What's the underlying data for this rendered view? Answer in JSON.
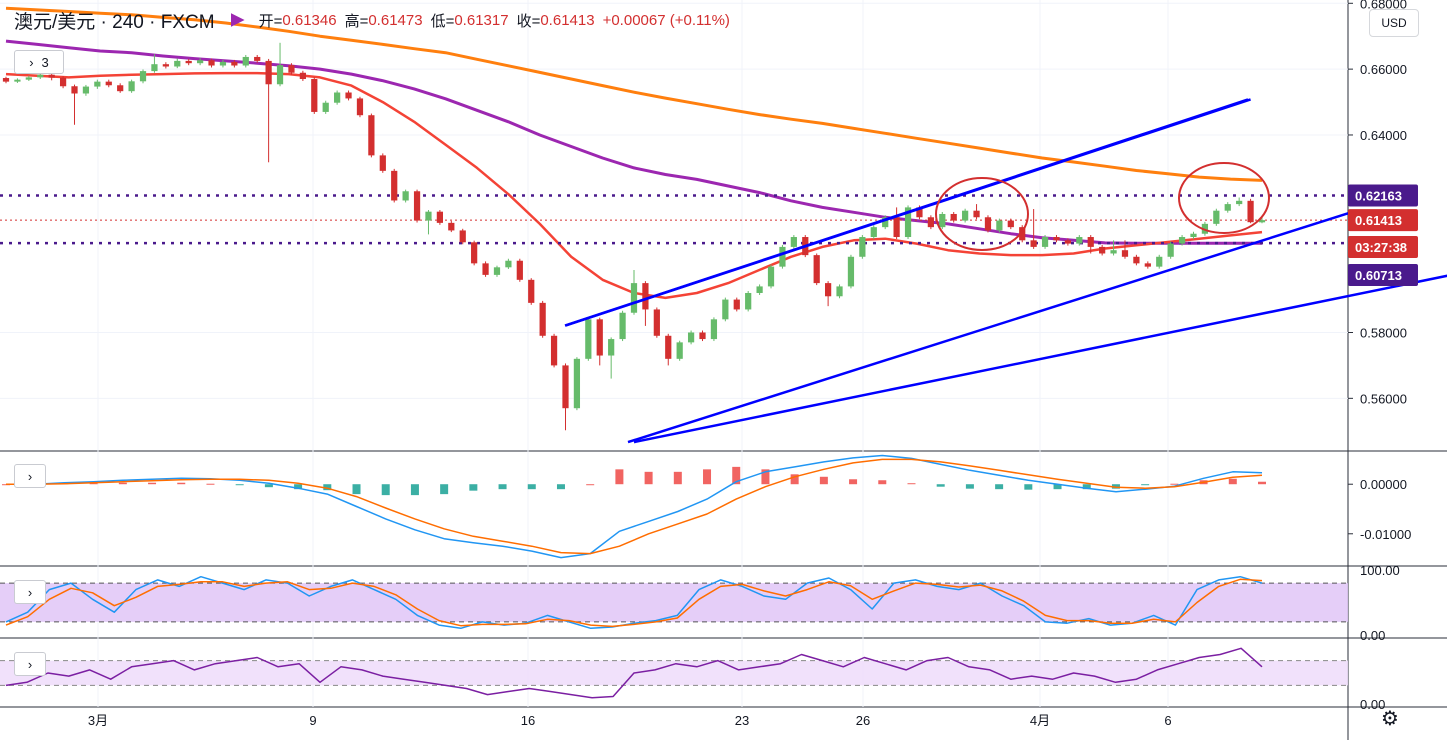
{
  "header": {
    "symbol": "澳元/美元 · 240 · FXCM",
    "open_label": "开=",
    "open": "0.61346",
    "high_label": "高=",
    "high": "0.61473",
    "low_label": "低=",
    "low": "0.61317",
    "close_label": "收=",
    "close": "0.61413",
    "change": "+0.00067 (+0.11%)",
    "indicators_count": "3"
  },
  "currency": "USD",
  "colors": {
    "up": "#26a69a",
    "down": "#d32f2f",
    "ma_fast": "#f44336",
    "ma_mid": "#9c27b0",
    "ma_slow": "#ff7f0e",
    "channel": "#0000ff",
    "level": "#4a1a8c",
    "accent": "#d32f2f"
  },
  "chart_data": [
    {
      "type": "candlestick",
      "title": "澳元/美元 · 240 · FXCM",
      "x_ticks": [
        "3月",
        "9",
        "16",
        "23",
        "26",
        "4月",
        "6"
      ],
      "y_ticks": [
        "0.68000",
        "0.66000",
        "0.64000",
        "0.58000",
        "0.56000"
      ],
      "ylim": [
        0.544,
        0.681
      ],
      "price_labels": [
        {
          "text": "0.62163",
          "value": 0.62163
        },
        {
          "text": "0.61413",
          "value": 0.61413
        },
        {
          "text": "03:27:38",
          "value": 0.6066
        },
        {
          "text": "0.60713",
          "value": 0.60713
        }
      ],
      "horizontal_levels": [
        0.62163,
        0.60713
      ],
      "current_price": 0.61413,
      "channel_lines": [
        {
          "from": [
            0.08,
            0.5821
          ],
          "to": [
            0.31,
            0.6508
          ]
        },
        {
          "from": [
            0.09,
            0.5467
          ],
          "to": [
            0.43,
            0.6148
          ]
        }
      ],
      "candles": [
        [
          0.6573,
          0.6562,
          0.6577,
          0.6557
        ],
        [
          0.6562,
          0.6568,
          0.6572,
          0.6558
        ],
        [
          0.6568,
          0.6575,
          0.658,
          0.6564
        ],
        [
          0.6575,
          0.6583,
          0.6588,
          0.657
        ],
        [
          0.6583,
          0.6574,
          0.659,
          0.6566
        ],
        [
          0.6574,
          0.6548,
          0.6579,
          0.6542
        ],
        [
          0.6548,
          0.6526,
          0.6553,
          0.6431
        ],
        [
          0.6526,
          0.6547,
          0.6552,
          0.6519
        ],
        [
          0.6547,
          0.6562,
          0.6568,
          0.654
        ],
        [
          0.6562,
          0.6551,
          0.6568,
          0.6545
        ],
        [
          0.6551,
          0.6533,
          0.6557,
          0.6528
        ],
        [
          0.6533,
          0.6563,
          0.6568,
          0.6528
        ],
        [
          0.6563,
          0.6594,
          0.6599,
          0.6557
        ],
        [
          0.6594,
          0.6615,
          0.6645,
          0.6589
        ],
        [
          0.6615,
          0.6608,
          0.6621,
          0.6602
        ],
        [
          0.6608,
          0.6625,
          0.6632,
          0.6603
        ],
        [
          0.6625,
          0.6618,
          0.6631,
          0.6612
        ],
        [
          0.6618,
          0.6627,
          0.6633,
          0.6612
        ],
        [
          0.6627,
          0.6611,
          0.6632,
          0.6605
        ],
        [
          0.6611,
          0.6622,
          0.6628,
          0.6605
        ],
        [
          0.6622,
          0.6611,
          0.6628,
          0.6605
        ],
        [
          0.6611,
          0.6637,
          0.6643,
          0.6605
        ],
        [
          0.6637,
          0.6625,
          0.6643,
          0.6619
        ],
        [
          0.6625,
          0.6554,
          0.6631,
          0.6317
        ],
        [
          0.6554,
          0.6612,
          0.668,
          0.6548
        ],
        [
          0.6612,
          0.6589,
          0.6618,
          0.6583
        ],
        [
          0.6589,
          0.657,
          0.6595,
          0.6564
        ],
        [
          0.657,
          0.647,
          0.6575,
          0.6464
        ],
        [
          0.647,
          0.6498,
          0.6504,
          0.6464
        ],
        [
          0.6498,
          0.6529,
          0.6535,
          0.6492
        ],
        [
          0.6529,
          0.6511,
          0.6535,
          0.6505
        ],
        [
          0.6511,
          0.646,
          0.6516,
          0.6454
        ],
        [
          0.646,
          0.6338,
          0.6465,
          0.6332
        ],
        [
          0.6338,
          0.6291,
          0.6344,
          0.6285
        ],
        [
          0.6291,
          0.6201,
          0.6297,
          0.6195
        ],
        [
          0.6201,
          0.6229,
          0.6234,
          0.6195
        ],
        [
          0.6229,
          0.614,
          0.6234,
          0.6134
        ],
        [
          0.614,
          0.6167,
          0.6172,
          0.6098
        ],
        [
          0.6167,
          0.6133,
          0.6172,
          0.6127
        ],
        [
          0.6133,
          0.611,
          0.6139,
          0.6105
        ],
        [
          0.611,
          0.6074,
          0.6115,
          0.6068
        ],
        [
          0.6074,
          0.601,
          0.6079,
          0.6004
        ],
        [
          0.601,
          0.5975,
          0.6016,
          0.5969
        ],
        [
          0.5975,
          0.5998,
          0.6003,
          0.5969
        ],
        [
          0.5998,
          0.6018,
          0.6024,
          0.5993
        ],
        [
          0.6018,
          0.596,
          0.6024,
          0.5954
        ],
        [
          0.596,
          0.589,
          0.5965,
          0.5884
        ],
        [
          0.589,
          0.579,
          0.5896,
          0.5784
        ],
        [
          0.579,
          0.57,
          0.5796,
          0.5694
        ],
        [
          0.57,
          0.557,
          0.5706,
          0.5503
        ],
        [
          0.557,
          0.572,
          0.5725,
          0.5564
        ],
        [
          0.572,
          0.584,
          0.5845,
          0.5714
        ],
        [
          0.584,
          0.573,
          0.5845,
          0.57
        ],
        [
          0.573,
          0.578,
          0.5785,
          0.566
        ],
        [
          0.578,
          0.586,
          0.5866,
          0.5774
        ],
        [
          0.586,
          0.595,
          0.599,
          0.5854
        ],
        [
          0.595,
          0.587,
          0.5956,
          0.582
        ],
        [
          0.587,
          0.579,
          0.5876,
          0.5784
        ],
        [
          0.579,
          0.572,
          0.5796,
          0.57
        ],
        [
          0.572,
          0.577,
          0.5775,
          0.5714
        ],
        [
          0.577,
          0.58,
          0.5806,
          0.5764
        ],
        [
          0.58,
          0.578,
          0.5806,
          0.5774
        ],
        [
          0.578,
          0.584,
          0.5846,
          0.5774
        ],
        [
          0.584,
          0.59,
          0.5906,
          0.5834
        ],
        [
          0.59,
          0.587,
          0.5906,
          0.5864
        ],
        [
          0.587,
          0.592,
          0.5926,
          0.5864
        ],
        [
          0.592,
          0.594,
          0.5946,
          0.5914
        ],
        [
          0.594,
          0.6,
          0.6006,
          0.5934
        ],
        [
          0.6,
          0.606,
          0.6066,
          0.5994
        ],
        [
          0.606,
          0.609,
          0.6096,
          0.6054
        ],
        [
          0.609,
          0.6035,
          0.6096,
          0.6029
        ],
        [
          0.6035,
          0.595,
          0.604,
          0.5944
        ],
        [
          0.595,
          0.591,
          0.5956,
          0.588
        ],
        [
          0.591,
          0.594,
          0.5946,
          0.5904
        ],
        [
          0.594,
          0.603,
          0.6036,
          0.5934
        ],
        [
          0.603,
          0.609,
          0.6096,
          0.6024
        ],
        [
          0.609,
          0.612,
          0.6126,
          0.6084
        ],
        [
          0.612,
          0.615,
          0.6156,
          0.6114
        ],
        [
          0.615,
          0.609,
          0.618,
          0.6084
        ],
        [
          0.609,
          0.618,
          0.6186,
          0.6084
        ],
        [
          0.618,
          0.615,
          0.6186,
          0.6144
        ],
        [
          0.615,
          0.612,
          0.6156,
          0.6114
        ],
        [
          0.612,
          0.616,
          0.6166,
          0.6114
        ],
        [
          0.616,
          0.614,
          0.6166,
          0.6134
        ],
        [
          0.614,
          0.617,
          0.6176,
          0.6134
        ],
        [
          0.617,
          0.615,
          0.619,
          0.6144
        ],
        [
          0.615,
          0.611,
          0.6156,
          0.6104
        ],
        [
          0.611,
          0.614,
          0.6146,
          0.6104
        ],
        [
          0.614,
          0.612,
          0.6146,
          0.6114
        ],
        [
          0.612,
          0.608,
          0.6126,
          0.6074
        ],
        [
          0.608,
          0.606,
          0.6175,
          0.6054
        ],
        [
          0.606,
          0.609,
          0.6096,
          0.6054
        ],
        [
          0.609,
          0.608,
          0.6096,
          0.6074
        ],
        [
          0.608,
          0.607,
          0.6086,
          0.6064
        ],
        [
          0.607,
          0.609,
          0.6096,
          0.6064
        ],
        [
          0.609,
          0.606,
          0.6096,
          0.604
        ],
        [
          0.606,
          0.604,
          0.6066,
          0.6034
        ],
        [
          0.604,
          0.605,
          0.608,
          0.6034
        ],
        [
          0.605,
          0.603,
          0.608,
          0.6024
        ],
        [
          0.603,
          0.601,
          0.6036,
          0.6004
        ],
        [
          0.601,
          0.6,
          0.6016,
          0.5994
        ],
        [
          0.6,
          0.603,
          0.6036,
          0.5994
        ],
        [
          0.603,
          0.607,
          0.6076,
          0.6024
        ],
        [
          0.607,
          0.609,
          0.6096,
          0.6064
        ],
        [
          0.609,
          0.61,
          0.6106,
          0.6084
        ],
        [
          0.61,
          0.613,
          0.6136,
          0.6094
        ],
        [
          0.613,
          0.617,
          0.6176,
          0.6124
        ],
        [
          0.617,
          0.619,
          0.6196,
          0.6164
        ],
        [
          0.619,
          0.62,
          0.621,
          0.6184
        ],
        [
          0.62,
          0.6135,
          0.6206,
          0.6132
        ],
        [
          0.61346,
          0.61413,
          0.61473,
          0.61317
        ]
      ],
      "ma_fast": [
        0.6585,
        0.658,
        0.6575,
        0.658,
        0.6583,
        0.6585,
        0.6587,
        0.6588,
        0.6588,
        0.6585,
        0.6575,
        0.655,
        0.65,
        0.644,
        0.637,
        0.63,
        0.622,
        0.613,
        0.603,
        0.596,
        0.592,
        0.5905,
        0.592,
        0.595,
        0.599,
        0.603,
        0.606,
        0.608,
        0.6085,
        0.607,
        0.605,
        0.604,
        0.6035,
        0.6035,
        0.604,
        0.6055,
        0.6065,
        0.6075,
        0.6085,
        0.6095,
        0.6105
      ],
      "ma_mid": [
        0.6685,
        0.6675,
        0.6665,
        0.6655,
        0.665,
        0.664,
        0.6632,
        0.6625,
        0.6618,
        0.661,
        0.66,
        0.6585,
        0.6565,
        0.654,
        0.651,
        0.6475,
        0.644,
        0.64,
        0.6365,
        0.633,
        0.63,
        0.628,
        0.6265,
        0.6245,
        0.6225,
        0.62,
        0.618,
        0.6165,
        0.615,
        0.614,
        0.613,
        0.6115,
        0.61,
        0.6088,
        0.608,
        0.6072,
        0.6071,
        0.6071,
        0.6071,
        0.6071,
        0.6071
      ],
      "ma_slow": [
        0.6785,
        0.678,
        0.6775,
        0.677,
        0.6765,
        0.6757,
        0.675,
        0.674,
        0.6728,
        0.6715,
        0.67,
        0.6688,
        0.6675,
        0.6662,
        0.665,
        0.663,
        0.661,
        0.659,
        0.657,
        0.655,
        0.653,
        0.6512,
        0.6495,
        0.6478,
        0.6462,
        0.6448,
        0.6435,
        0.642,
        0.6405,
        0.639,
        0.6375,
        0.636,
        0.6345,
        0.633,
        0.6318,
        0.6305,
        0.6292,
        0.6282,
        0.6272,
        0.6266,
        0.6262
      ]
    },
    {
      "type": "line",
      "indicator": "MACD",
      "y_ticks": [
        "0.00000",
        "-0.01000"
      ],
      "ylim": [
        -0.0165,
        0.0065
      ],
      "macd": [
        0.0,
        0.0,
        0.0003,
        0.0005,
        0.0008,
        0.001,
        0.0012,
        0.0011,
        0.0008,
        0.0002,
        -0.0008,
        -0.002,
        -0.0045,
        -0.007,
        -0.0092,
        -0.011,
        -0.0118,
        -0.0125,
        -0.0135,
        -0.0148,
        -0.014,
        -0.0095,
        -0.0075,
        -0.0055,
        -0.003,
        0.0005,
        0.0025,
        0.0035,
        0.0045,
        0.0053,
        0.0058,
        0.0052,
        0.004,
        0.0028,
        0.0018,
        0.0008,
        0.0,
        -0.0008,
        -0.0015,
        -0.001,
        -0.0004,
        0.0012,
        0.0025,
        0.0023
      ],
      "signal": [
        0.0,
        0.0,
        0.0001,
        0.0003,
        0.0005,
        0.0007,
        0.0009,
        0.001,
        0.001,
        0.0008,
        0.0002,
        -0.0008,
        -0.0025,
        -0.0048,
        -0.007,
        -0.009,
        -0.0105,
        -0.0115,
        -0.0125,
        -0.0138,
        -0.014,
        -0.0125,
        -0.01,
        -0.008,
        -0.006,
        -0.003,
        -0.0005,
        0.0015,
        0.003,
        0.0043,
        0.005,
        0.005,
        0.0045,
        0.0037,
        0.0028,
        0.0019,
        0.001,
        0.0002,
        -0.0006,
        -0.0008,
        -0.0005,
        0.0004,
        0.0014,
        0.0018
      ],
      "histogram": [
        0.0,
        0.0,
        0.0002,
        0.0002,
        0.0003,
        0.0003,
        0.0003,
        0.0001,
        -0.0002,
        -0.0006,
        -0.001,
        -0.0012,
        -0.002,
        -0.0022,
        -0.0022,
        -0.002,
        -0.0013,
        -0.001,
        -0.001,
        -0.001,
        0.0,
        0.003,
        0.0025,
        0.0025,
        0.003,
        0.0035,
        0.003,
        0.002,
        0.0015,
        0.001,
        0.0008,
        0.0002,
        -0.0005,
        -0.0009,
        -0.001,
        -0.0011,
        -0.001,
        -0.001,
        -0.0009,
        -0.0002,
        0.0001,
        0.0008,
        0.0011,
        0.0005
      ]
    },
    {
      "type": "line",
      "indicator": "Stochastic",
      "y_ticks": [
        "100.00",
        "0.00"
      ],
      "ylim": [
        -5,
        105
      ],
      "band": [
        20,
        80
      ],
      "k": [
        20,
        35,
        70,
        80,
        55,
        35,
        70,
        85,
        75,
        90,
        80,
        70,
        85,
        80,
        60,
        75,
        85,
        70,
        55,
        30,
        15,
        10,
        20,
        15,
        18,
        30,
        20,
        10,
        12,
        18,
        22,
        30,
        70,
        85,
        75,
        60,
        55,
        80,
        88,
        70,
        40,
        80,
        85,
        75,
        70,
        80,
        60,
        45,
        20,
        18,
        25,
        15,
        18,
        30,
        15,
        70,
        85,
        90,
        80
      ],
      "d": [
        15,
        28,
        55,
        72,
        65,
        45,
        58,
        75,
        78,
        82,
        82,
        75,
        80,
        82,
        70,
        72,
        80,
        75,
        62,
        40,
        22,
        14,
        16,
        16,
        17,
        24,
        22,
        15,
        13,
        16,
        20,
        26,
        55,
        75,
        78,
        68,
        60,
        70,
        82,
        76,
        55,
        68,
        80,
        78,
        74,
        77,
        68,
        52,
        30,
        22,
        22,
        18,
        18,
        24,
        20,
        50,
        75,
        86,
        84
      ]
    },
    {
      "type": "line",
      "indicator": "RSI",
      "y_ticks": [
        "0.00"
      ],
      "ylim": [
        -5,
        105
      ],
      "band": [
        30,
        70
      ],
      "rsi": [
        30,
        35,
        50,
        45,
        55,
        40,
        60,
        65,
        70,
        55,
        65,
        70,
        75,
        60,
        65,
        35,
        60,
        55,
        45,
        40,
        35,
        30,
        25,
        15,
        20,
        25,
        20,
        15,
        10,
        12,
        50,
        55,
        65,
        60,
        70,
        55,
        60,
        65,
        80,
        70,
        60,
        75,
        65,
        55,
        70,
        75,
        60,
        55,
        40,
        45,
        40,
        50,
        45,
        35,
        40,
        55,
        65,
        75,
        80,
        90,
        60
      ]
    }
  ]
}
